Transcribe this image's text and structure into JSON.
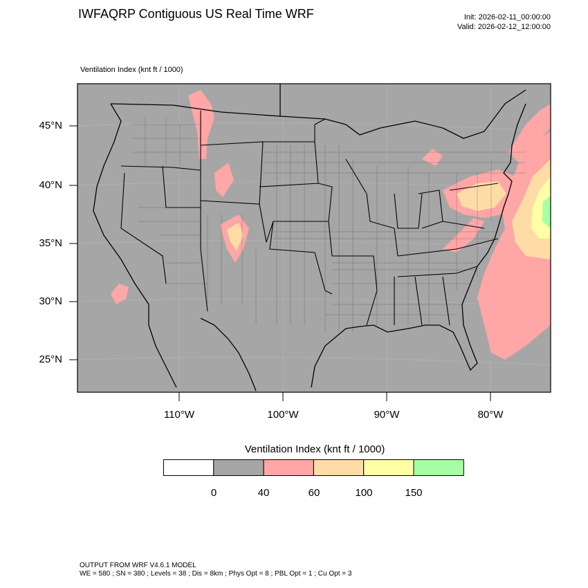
{
  "header": {
    "title": "IWFAQRP Contiguous US Real Time WRF",
    "init": "Init: 2026-02-11_00:00:00",
    "valid": "Valid: 2026-02-12_12:00:00",
    "field_label": "Ventilation Index   (knt ft / 1000)"
  },
  "map": {
    "lat_labels": [
      "45°N",
      "40°N",
      "35°N",
      "30°N",
      "25°N"
    ],
    "lon_labels": [
      "110°W",
      "100°W",
      "90°W",
      "80°W"
    ],
    "background_color": "#a6a6a6"
  },
  "colorbar": {
    "title": "Ventilation Index  (knt ft / 1000)",
    "bins": [
      {
        "color": "#ffffff"
      },
      {
        "color": "#a6a6a6"
      },
      {
        "color": "#ffa6a6"
      },
      {
        "color": "#ffdca6"
      },
      {
        "color": "#ffffa6"
      },
      {
        "color": "#a6ffa6"
      }
    ],
    "tick_labels": [
      "0",
      "40",
      "60",
      "100",
      "150"
    ]
  },
  "footer": {
    "line1": "OUTPUT FROM WRF V4.6.1 MODEL",
    "line2": "WE = 580 ; SN = 380 ; Levels = 38 ; Dis = 8km ; Phys Opt = 8 ; PBL Opt = 1 ; Cu Opt = 3"
  }
}
